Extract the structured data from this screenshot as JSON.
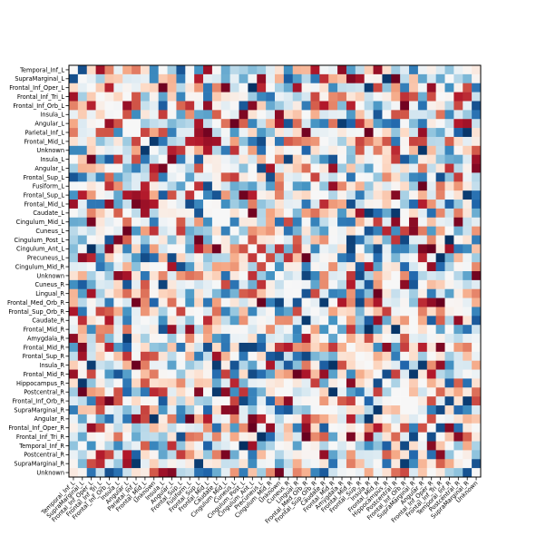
{
  "chart_data": {
    "type": "heatmap",
    "title": "",
    "xlabel": "",
    "ylabel": "",
    "colormap": "RdBu_r",
    "value_range": [
      -1,
      1
    ],
    "row_labels": [
      "Temporal_Inf_L",
      "SupraMarginal_L",
      "Frontal_Inf_Oper_L",
      "Frontal_Inf_Tri_L",
      "Frontal_Inf_Orb_L",
      "Insula_L",
      "Angular_L",
      "Parietal_Inf_L",
      "Frontal_Mid_L",
      "Unknown",
      "Insula_L",
      "Angular_L",
      "Frontal_Sup_L",
      "Fusiform_L",
      "Frontal_Sup_L",
      "Frontal_Mid_L",
      "Caudate_L",
      "Cingulum_Mid_L",
      "Cuneus_L",
      "Cingulum_Post_L",
      "Cingulum_Ant_L",
      "Precuneus_L",
      "Cingulum_Mid_R",
      "Unknown",
      "Cuneus_R",
      "Lingual_R",
      "Frontal_Med_Orb_R",
      "Frontal_Sup_Orb_R",
      "Caudate_R",
      "Frontal_Mid_R",
      "Amygdala_R",
      "Frontal_Mid_R",
      "Frontal_Sup_R",
      "Insula_R",
      "Frontal_Mid_R",
      "Hippocampus_R",
      "Postcentral_R",
      "Frontal_Inf_Orb_R",
      "SupraMarginal_R",
      "Angular_R",
      "Frontal_Inf_Oper_R",
      "Frontal_Inf_Tri_R",
      "Temporal_Inf_R",
      "Postcentral_R",
      "SupraMarginal_R",
      "Unknown"
    ],
    "col_labels": [
      "Temporal_Inf_L",
      "SupraMarginal_L",
      "Frontal_Inf_Oper_L",
      "Frontal_Inf_Tri_L",
      "Frontal_Inf_Orb_L",
      "Insula_L",
      "Angular_L",
      "Parietal_Inf_L",
      "Frontal_Mid_L",
      "Unknown",
      "Insula_L",
      "Angular_L",
      "Frontal_Sup_L",
      "Fusiform_L",
      "Frontal_Sup_L",
      "Frontal_Mid_L",
      "Caudate_L",
      "Cingulum_Mid_L",
      "Cuneus_L",
      "Cingulum_Post_L",
      "Cingulum_Ant_L",
      "Precuneus_L",
      "Cingulum_Mid_R",
      "Unknown",
      "Cuneus_R",
      "Lingual_R",
      "Frontal_Med_Orb_R",
      "Frontal_Sup_Orb_R",
      "Caudate_R",
      "Frontal_Mid_R",
      "Amygdala_R",
      "Frontal_Mid_R",
      "Frontal_Sup_R",
      "Insula_R",
      "Frontal_Mid_R",
      "Hippocampus_R",
      "Postcentral_R",
      "Frontal_Inf_Orb_R",
      "SupraMarginal_R",
      "Angular_R",
      "Frontal_Inf_Oper_R",
      "Frontal_Inf_Tri_R",
      "Temporal_Inf_R",
      "Postcentral_R",
      "SupraMarginal_R",
      "Unknown"
    ],
    "values_note": "matrix cells are diverging correlation-like values in [-1, 1]; diagonal near zero"
  }
}
